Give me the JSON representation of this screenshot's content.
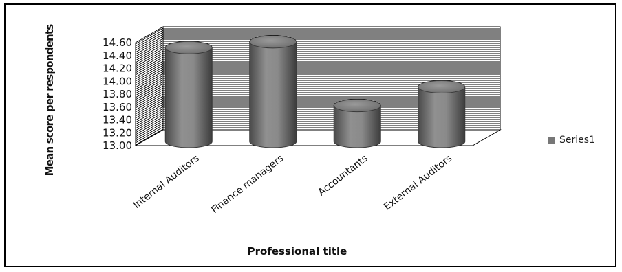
{
  "chart_data": {
    "type": "bar",
    "style": "3d-cylinder",
    "categories": [
      "Internal Auditors",
      "Finance managers",
      "Accountants",
      "External Auditors"
    ],
    "series": [
      {
        "name": "Series1",
        "values": [
          14.48,
          14.57,
          13.58,
          13.87
        ]
      }
    ],
    "title": "",
    "xlabel": "Professional title",
    "ylabel": "Mean score per respondents",
    "ylim": [
      13.0,
      14.6
    ],
    "yticks": [
      "13.00",
      "13.20",
      "13.40",
      "13.60",
      "13.80",
      "14.00",
      "14.20",
      "14.40",
      "14.60"
    ],
    "grid": true,
    "legend": "right",
    "colors": {
      "bar": "#7a7a7a",
      "grid": "#000000"
    }
  }
}
